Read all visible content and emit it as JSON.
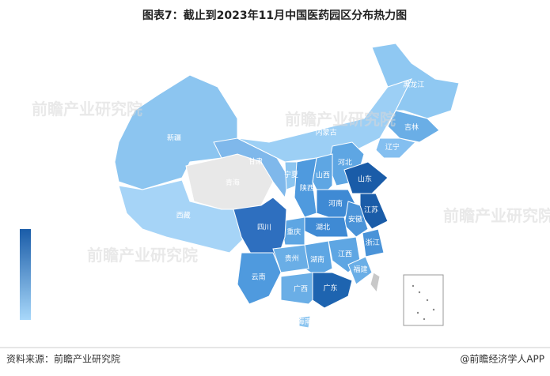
{
  "title": "图表7：截止到2023年11月中国医药园区分布热力图",
  "watermark": "前瞻产业研究院",
  "source": "资料来源：前瞻产业研究院",
  "credit": "@前瞻经济学人APP",
  "legend_colors": [
    "#1a5ca8",
    "#a8d8fa"
  ],
  "regions": [
    {
      "name": "新疆",
      "color": "#8cc5f0"
    },
    {
      "name": "西藏",
      "color": "#a6d4f7"
    },
    {
      "name": "青海",
      "color": "#e8e8e8"
    },
    {
      "name": "甘肃",
      "color": "#7fb8eb"
    },
    {
      "name": "内蒙古",
      "color": "#9ccff5"
    },
    {
      "name": "黑龙江",
      "color": "#8fc8f2"
    },
    {
      "name": "吉林",
      "color": "#6aaee6"
    },
    {
      "name": "辽宁",
      "color": "#84bff0"
    },
    {
      "name": "河北",
      "color": "#5ea6e3"
    },
    {
      "name": "山西",
      "color": "#5ea6e3"
    },
    {
      "name": "宁夏",
      "color": "#8cc5f0"
    },
    {
      "name": "陕西",
      "color": "#4f9ade"
    },
    {
      "name": "山东",
      "color": "#1a5ca8"
    },
    {
      "name": "河南",
      "color": "#3f8ad4"
    },
    {
      "name": "江苏",
      "color": "#1a5ca8"
    },
    {
      "name": "安徽",
      "color": "#4a93d8"
    },
    {
      "name": "湖北",
      "color": "#3f8ad4"
    },
    {
      "name": "重庆",
      "color": "#5ea6e3"
    },
    {
      "name": "四川",
      "color": "#2e6fbf"
    },
    {
      "name": "浙江",
      "color": "#4a93d8"
    },
    {
      "name": "江西",
      "color": "#5ea6e3"
    },
    {
      "name": "湖南",
      "color": "#5ea6e3"
    },
    {
      "name": "福建",
      "color": "#6aaee6"
    },
    {
      "name": "贵州",
      "color": "#6aaee6"
    },
    {
      "name": "云南",
      "color": "#4f9ade"
    },
    {
      "name": "广西",
      "color": "#6aaee6"
    },
    {
      "name": "广东",
      "color": "#1e64b0"
    },
    {
      "name": "海南",
      "color": "#8cc5f0"
    }
  ]
}
